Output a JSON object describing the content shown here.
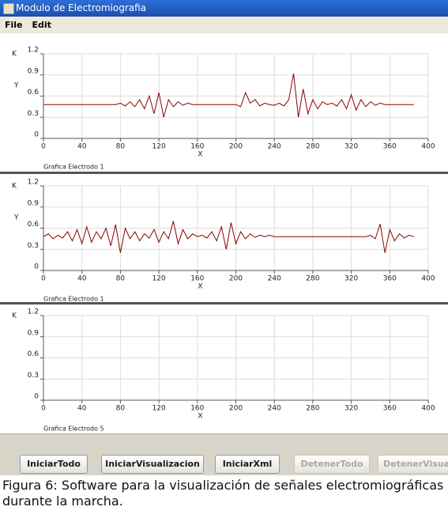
{
  "window": {
    "title": "Modulo de Electromiografia",
    "menu": [
      "File",
      "Edit"
    ]
  },
  "charts": [
    {
      "k_label": "K",
      "y_label": "Y",
      "x_label": "X",
      "name": "Grafica Electrodo 1",
      "ylim": [
        0,
        1.2
      ],
      "yticks": [
        0,
        0.3,
        0.6,
        0.9,
        1.2
      ],
      "xlim": [
        0,
        400
      ],
      "xticks": [
        0,
        40,
        80,
        120,
        160,
        200,
        240,
        280,
        320,
        360,
        400
      ],
      "color": "#8b0000",
      "x": [
        0,
        5,
        10,
        15,
        20,
        25,
        30,
        35,
        40,
        45,
        50,
        55,
        60,
        65,
        70,
        75,
        80,
        85,
        90,
        95,
        100,
        105,
        110,
        115,
        120,
        125,
        130,
        135,
        140,
        145,
        150,
        155,
        160,
        165,
        170,
        175,
        180,
        185,
        190,
        195,
        200,
        205,
        210,
        215,
        220,
        225,
        230,
        235,
        240,
        245,
        250,
        255,
        260,
        265,
        270,
        275,
        280,
        285,
        290,
        295,
        300,
        305,
        310,
        315,
        320,
        325,
        330,
        335,
        340,
        345,
        350,
        355,
        360,
        365,
        370,
        375,
        380,
        385
      ],
      "values": [
        0.48,
        0.48,
        0.48,
        0.48,
        0.48,
        0.48,
        0.48,
        0.48,
        0.48,
        0.48,
        0.48,
        0.48,
        0.48,
        0.48,
        0.48,
        0.48,
        0.5,
        0.46,
        0.52,
        0.45,
        0.55,
        0.42,
        0.6,
        0.35,
        0.65,
        0.3,
        0.55,
        0.45,
        0.52,
        0.47,
        0.5,
        0.48,
        0.48,
        0.48,
        0.48,
        0.48,
        0.48,
        0.48,
        0.48,
        0.48,
        0.48,
        0.45,
        0.65,
        0.5,
        0.55,
        0.46,
        0.5,
        0.48,
        0.47,
        0.5,
        0.46,
        0.55,
        0.92,
        0.3,
        0.7,
        0.35,
        0.55,
        0.42,
        0.52,
        0.48,
        0.5,
        0.46,
        0.55,
        0.42,
        0.62,
        0.4,
        0.55,
        0.45,
        0.52,
        0.47,
        0.5,
        0.48,
        0.48,
        0.48,
        0.48,
        0.48,
        0.48,
        0.48
      ]
    },
    {
      "k_label": "K",
      "y_label": "Y",
      "x_label": "X",
      "name": "Grafica Electrodo 1",
      "ylim": [
        0,
        1.2
      ],
      "yticks": [
        0,
        0.3,
        0.6,
        0.9,
        1.2
      ],
      "xlim": [
        0,
        400
      ],
      "xticks": [
        0,
        40,
        80,
        120,
        160,
        200,
        240,
        280,
        320,
        360,
        400
      ],
      "color": "#8b0000",
      "x": [
        0,
        5,
        10,
        15,
        20,
        25,
        30,
        35,
        40,
        45,
        50,
        55,
        60,
        65,
        70,
        75,
        80,
        85,
        90,
        95,
        100,
        105,
        110,
        115,
        120,
        125,
        130,
        135,
        140,
        145,
        150,
        155,
        160,
        165,
        170,
        175,
        180,
        185,
        190,
        195,
        200,
        205,
        210,
        215,
        220,
        225,
        230,
        235,
        240,
        245,
        250,
        255,
        260,
        265,
        270,
        275,
        280,
        285,
        290,
        295,
        300,
        305,
        310,
        315,
        320,
        325,
        330,
        335,
        340,
        345,
        350,
        355,
        360,
        365,
        370,
        375,
        380,
        385
      ],
      "values": [
        0.48,
        0.52,
        0.45,
        0.5,
        0.46,
        0.55,
        0.42,
        0.58,
        0.38,
        0.62,
        0.4,
        0.55,
        0.45,
        0.6,
        0.35,
        0.65,
        0.25,
        0.6,
        0.45,
        0.55,
        0.42,
        0.52,
        0.46,
        0.58,
        0.4,
        0.55,
        0.45,
        0.7,
        0.38,
        0.58,
        0.45,
        0.52,
        0.48,
        0.5,
        0.46,
        0.55,
        0.42,
        0.62,
        0.3,
        0.68,
        0.38,
        0.55,
        0.45,
        0.52,
        0.47,
        0.5,
        0.48,
        0.5,
        0.48,
        0.48,
        0.48,
        0.48,
        0.48,
        0.48,
        0.48,
        0.48,
        0.48,
        0.48,
        0.48,
        0.48,
        0.48,
        0.48,
        0.48,
        0.48,
        0.48,
        0.48,
        0.48,
        0.48,
        0.5,
        0.45,
        0.66,
        0.25,
        0.58,
        0.42,
        0.52,
        0.46,
        0.5,
        0.48
      ]
    },
    {
      "k_label": "K",
      "x_label": "X",
      "name": "Grafica Electrodo 5",
      "ylim": [
        0,
        1.2
      ],
      "yticks": [
        0,
        0.3,
        0.6,
        0.9,
        1.2
      ],
      "xlim": [
        0,
        400
      ],
      "xticks": [
        0,
        40,
        80,
        120,
        160,
        200,
        240,
        280,
        320,
        360,
        400
      ]
    }
  ],
  "buttons": [
    {
      "label": "IniciarTodo",
      "enabled": true
    },
    {
      "label": "IniciarVisualizacion",
      "enabled": true
    },
    {
      "label": "IniciarXml",
      "enabled": true
    },
    {
      "label": "DetenerTodo",
      "enabled": false
    },
    {
      "label": "DetenerVisual",
      "enabled": false
    }
  ],
  "caption": "Figura 6: Software para la visualización de señales electromiográficas durante la marcha."
}
